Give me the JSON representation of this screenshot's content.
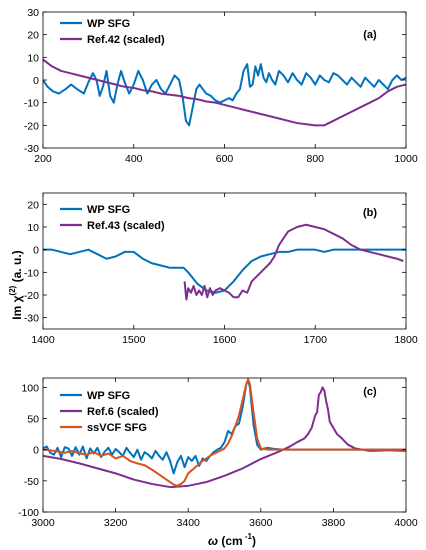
{
  "figure": {
    "ylabel": "Im χ(2) (a. u.)",
    "ylabel_main": "Im  χ",
    "ylabel_sup": "(2)",
    "ylabel_tail": " (a. u.)",
    "xlabel": "ω (cm⁻¹)",
    "xlabel_main": "ω",
    "xlabel_mid": " (cm",
    "xlabel_sup": " -1",
    "xlabel_tail": ")"
  },
  "colors": {
    "wp_sfg": "#0072BD",
    "ref": "#7E2F8E",
    "ssvcf": "#D95319"
  },
  "chart_data": [
    {
      "type": "line",
      "panel_label": "(a)",
      "xlim": [
        200,
        1000
      ],
      "ylim": [
        -30,
        30
      ],
      "xticks": [
        200,
        400,
        600,
        800,
        1000
      ],
      "yticks": [
        -30,
        -20,
        -10,
        0,
        10,
        20,
        30
      ],
      "legend_position": "top-left",
      "series": [
        {
          "name": "WP SFG",
          "color": "#0072BD",
          "x": [
            200,
            210,
            222,
            235,
            250,
            262,
            275,
            290,
            300,
            310,
            318,
            325,
            332,
            340,
            348,
            356,
            364,
            372,
            380,
            390,
            400,
            410,
            420,
            430,
            440,
            450,
            460,
            470,
            480,
            490,
            500,
            508,
            515,
            522,
            530,
            538,
            545,
            552,
            560,
            570,
            580,
            590,
            600,
            610,
            618,
            626,
            634,
            642,
            650,
            656,
            662,
            668,
            674,
            680,
            686,
            692,
            698,
            705,
            712,
            720,
            730,
            740,
            750,
            760,
            770,
            780,
            790,
            800,
            810,
            820,
            830,
            840,
            850,
            860,
            870,
            880,
            890,
            900,
            910,
            920,
            930,
            940,
            950,
            960,
            970,
            980,
            990,
            1000
          ],
          "y": [
            0,
            -3,
            -5,
            -6,
            -4,
            -2,
            -4,
            -6,
            -1,
            3,
            0,
            -7,
            -3,
            4,
            -7,
            -10,
            -2,
            4,
            -1,
            -6,
            -2,
            4,
            0,
            -6,
            -2,
            0,
            -4,
            -6,
            -2,
            2,
            0,
            -8,
            -18,
            -20,
            -12,
            -4,
            -2,
            -4,
            -6,
            -7,
            -9,
            -10,
            -9,
            -8,
            -9,
            -6,
            -4,
            4,
            7,
            -3,
            -2,
            6,
            2,
            7,
            1,
            -1,
            3,
            0,
            -2,
            4,
            2,
            -1,
            3,
            0,
            -2,
            3,
            1,
            -2,
            2,
            0,
            -1,
            3,
            2,
            0,
            -2,
            1,
            -1,
            -3,
            1,
            -1,
            -3,
            0,
            -2,
            -4,
            0,
            2,
            0,
            1
          ]
        },
        {
          "name": "Ref.42 (scaled)",
          "color": "#7E2F8E",
          "x": [
            200,
            220,
            240,
            260,
            280,
            300,
            320,
            340,
            360,
            380,
            400,
            420,
            440,
            460,
            480,
            500,
            520,
            540,
            560,
            580,
            600,
            620,
            640,
            660,
            680,
            700,
            720,
            740,
            760,
            780,
            800,
            820,
            840,
            860,
            880,
            900,
            920,
            940,
            960,
            980,
            1000
          ],
          "y": [
            9,
            6,
            4,
            3,
            2,
            1,
            0,
            -1,
            -2,
            -3,
            -3.5,
            -4.5,
            -5,
            -6,
            -6.5,
            -7,
            -8,
            -8.5,
            -9.5,
            -10,
            -11,
            -12,
            -13,
            -14,
            -15,
            -16,
            -17,
            -18,
            -19,
            -19.5,
            -20,
            -20,
            -18,
            -16,
            -14,
            -12,
            -10,
            -8,
            -5,
            -3,
            -2
          ]
        }
      ]
    },
    {
      "type": "line",
      "panel_label": "(b)",
      "xlim": [
        1400,
        1800
      ],
      "ylim": [
        -35,
        25
      ],
      "xticks": [
        1400,
        1500,
        1600,
        1700,
        1800
      ],
      "yticks": [
        -30,
        -20,
        -10,
        0,
        10,
        20
      ],
      "legend_position": "top-left",
      "series": [
        {
          "name": "WP SFG",
          "color": "#0072BD",
          "x": [
            1400,
            1410,
            1420,
            1430,
            1440,
            1450,
            1460,
            1470,
            1480,
            1490,
            1500,
            1510,
            1520,
            1530,
            1540,
            1550,
            1555,
            1560,
            1570,
            1580,
            1590,
            1600,
            1610,
            1620,
            1630,
            1640,
            1650,
            1660,
            1670,
            1680,
            1690,
            1700,
            1710,
            1720,
            1730,
            1740,
            1750,
            1760,
            1770,
            1780,
            1790,
            1800
          ],
          "y": [
            0,
            0,
            -1,
            -2,
            -1,
            0,
            -2,
            -4,
            -3,
            -1,
            -1,
            -4,
            -6,
            -7,
            -8,
            -8,
            -8,
            -10,
            -15,
            -18,
            -19,
            -18,
            -14,
            -9,
            -5,
            -3,
            -2,
            -1,
            -1,
            0,
            0,
            0,
            -1,
            0,
            0,
            0,
            0,
            0,
            0,
            0,
            0,
            0
          ]
        },
        {
          "name": "Ref.43 (scaled)",
          "color": "#7E2F8E",
          "x": [
            1556,
            1558,
            1560,
            1563,
            1566,
            1569,
            1572,
            1575,
            1578,
            1581,
            1584,
            1587,
            1590,
            1595,
            1600,
            1605,
            1610,
            1615,
            1620,
            1625,
            1630,
            1640,
            1650,
            1655,
            1660,
            1665,
            1670,
            1680,
            1690,
            1700,
            1710,
            1720,
            1730,
            1740,
            1750,
            1760,
            1770,
            1780,
            1790,
            1797
          ],
          "y": [
            -14,
            -22,
            -17,
            -19,
            -16,
            -20,
            -18,
            -20,
            -16,
            -21,
            -17,
            -20,
            -18,
            -17,
            -18,
            -19,
            -21,
            -21,
            -18,
            -19,
            -14,
            -10,
            -6,
            -3,
            2,
            5,
            8,
            10,
            11,
            10,
            9,
            7,
            5,
            2,
            0,
            -1,
            -2,
            -3,
            -4,
            -5
          ]
        }
      ]
    },
    {
      "type": "line",
      "panel_label": "(c)",
      "xlim": [
        3000,
        4000
      ],
      "ylim": [
        -100,
        115
      ],
      "xticks": [
        3000,
        3200,
        3400,
        3600,
        3800,
        4000
      ],
      "yticks": [
        -100,
        -50,
        0,
        50,
        100
      ],
      "legend_position": "left",
      "series": [
        {
          "name": "WP SFG",
          "color": "#0072BD",
          "x": [
            3000,
            3010,
            3020,
            3030,
            3040,
            3050,
            3060,
            3070,
            3080,
            3090,
            3100,
            3110,
            3120,
            3130,
            3140,
            3150,
            3160,
            3170,
            3180,
            3190,
            3200,
            3210,
            3220,
            3230,
            3240,
            3250,
            3260,
            3270,
            3280,
            3290,
            3300,
            3310,
            3320,
            3330,
            3340,
            3350,
            3360,
            3370,
            3380,
            3390,
            3400,
            3410,
            3420,
            3430,
            3440,
            3450,
            3460,
            3470,
            3480,
            3490,
            3500,
            3510,
            3520,
            3530,
            3540,
            3550,
            3560,
            3565,
            3570,
            3580,
            3590,
            3600,
            3610,
            3620,
            3640,
            3660,
            3680,
            3700,
            3750,
            3800,
            3850,
            3900,
            3950,
            4000
          ],
          "y": [
            2,
            5,
            -5,
            -8,
            3,
            -12,
            4,
            2,
            -10,
            4,
            -8,
            5,
            -14,
            2,
            -6,
            3,
            -12,
            -3,
            3,
            -8,
            1,
            -4,
            -10,
            3,
            -5,
            -12,
            0,
            -16,
            -4,
            -8,
            -14,
            -2,
            -10,
            -16,
            -4,
            -18,
            -38,
            -20,
            -10,
            -28,
            -12,
            -18,
            -10,
            -26,
            -14,
            -18,
            -10,
            -4,
            0,
            3,
            12,
            30,
            25,
            38,
            42,
            68,
            105,
            112,
            100,
            40,
            8,
            0,
            2,
            3,
            1,
            0,
            0,
            0,
            0,
            0,
            0,
            0,
            0,
            0
          ]
        },
        {
          "name": "Ref.6 (scaled)",
          "color": "#7E2F8E",
          "x": [
            3000,
            3050,
            3100,
            3150,
            3200,
            3250,
            3300,
            3350,
            3400,
            3450,
            3500,
            3550,
            3600,
            3650,
            3680,
            3700,
            3720,
            3730,
            3740,
            3750,
            3755,
            3760,
            3765,
            3770,
            3775,
            3780,
            3785,
            3790,
            3800,
            3810,
            3820,
            3840,
            3860,
            3880,
            3900,
            3950,
            4000
          ],
          "y": [
            -10,
            -15,
            -22,
            -30,
            -38,
            -48,
            -55,
            -60,
            -58,
            -52,
            -42,
            -30,
            -15,
            -3,
            5,
            12,
            18,
            25,
            35,
            55,
            60,
            88,
            92,
            100,
            95,
            78,
            65,
            45,
            35,
            25,
            20,
            8,
            2,
            0,
            -2,
            -1,
            -2
          ]
        },
        {
          "name": "ssVCF SFG",
          "color": "#D95319",
          "x": [
            3000,
            3020,
            3040,
            3060,
            3080,
            3100,
            3120,
            3140,
            3160,
            3180,
            3200,
            3220,
            3240,
            3260,
            3280,
            3300,
            3320,
            3340,
            3350,
            3360,
            3370,
            3380,
            3390,
            3400,
            3420,
            3440,
            3460,
            3480,
            3500,
            3510,
            3520,
            3530,
            3540,
            3550,
            3560,
            3565,
            3570,
            3580,
            3590,
            3600,
            3620,
            3650,
            3700,
            3800,
            3900,
            4000
          ],
          "y": [
            0,
            -1,
            -3,
            -5,
            -2,
            -6,
            -8,
            -4,
            -10,
            -6,
            -14,
            -10,
            -18,
            -22,
            -25,
            -32,
            -40,
            -48,
            -52,
            -56,
            -58,
            -55,
            -50,
            -38,
            -28,
            -18,
            -10,
            -4,
            2,
            10,
            22,
            38,
            55,
            80,
            105,
            113,
            105,
            60,
            18,
            2,
            0,
            0,
            0,
            0,
            0,
            0
          ]
        }
      ]
    }
  ]
}
